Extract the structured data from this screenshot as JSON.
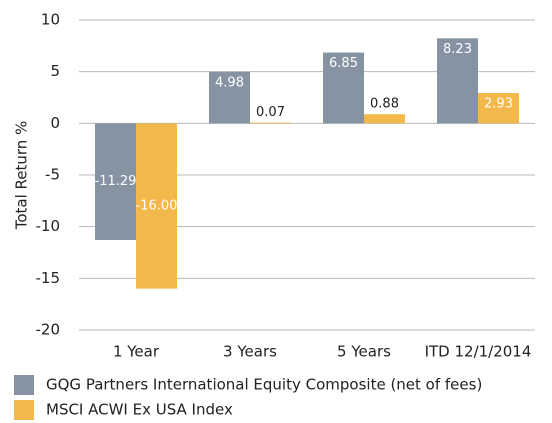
{
  "chart_data": {
    "type": "bar",
    "categories": [
      "1 Year",
      "3 Years",
      "5 Years",
      "ITD 12/1/2014"
    ],
    "series": [
      {
        "name": "GQG Partners International Equity Composite (net of fees)",
        "color": "#8593a3",
        "values": [
          -11.29,
          4.98,
          6.85,
          8.23
        ],
        "value_labels": [
          "-11.29",
          "4.98",
          "6.85",
          "8.23"
        ]
      },
      {
        "name": "MSCI ACWI Ex USA Index",
        "color": "#f2b84b",
        "values": [
          -16,
          0.07,
          0.88,
          2.93
        ],
        "value_labels": [
          "-16.00",
          "0.07",
          "0.88",
          "2.93"
        ]
      }
    ],
    "ylabel": "Total Return %",
    "ylim": [
      -20,
      10
    ],
    "yticks": [
      10,
      5,
      0,
      -5,
      -10,
      -15,
      -20
    ],
    "grid": true
  }
}
